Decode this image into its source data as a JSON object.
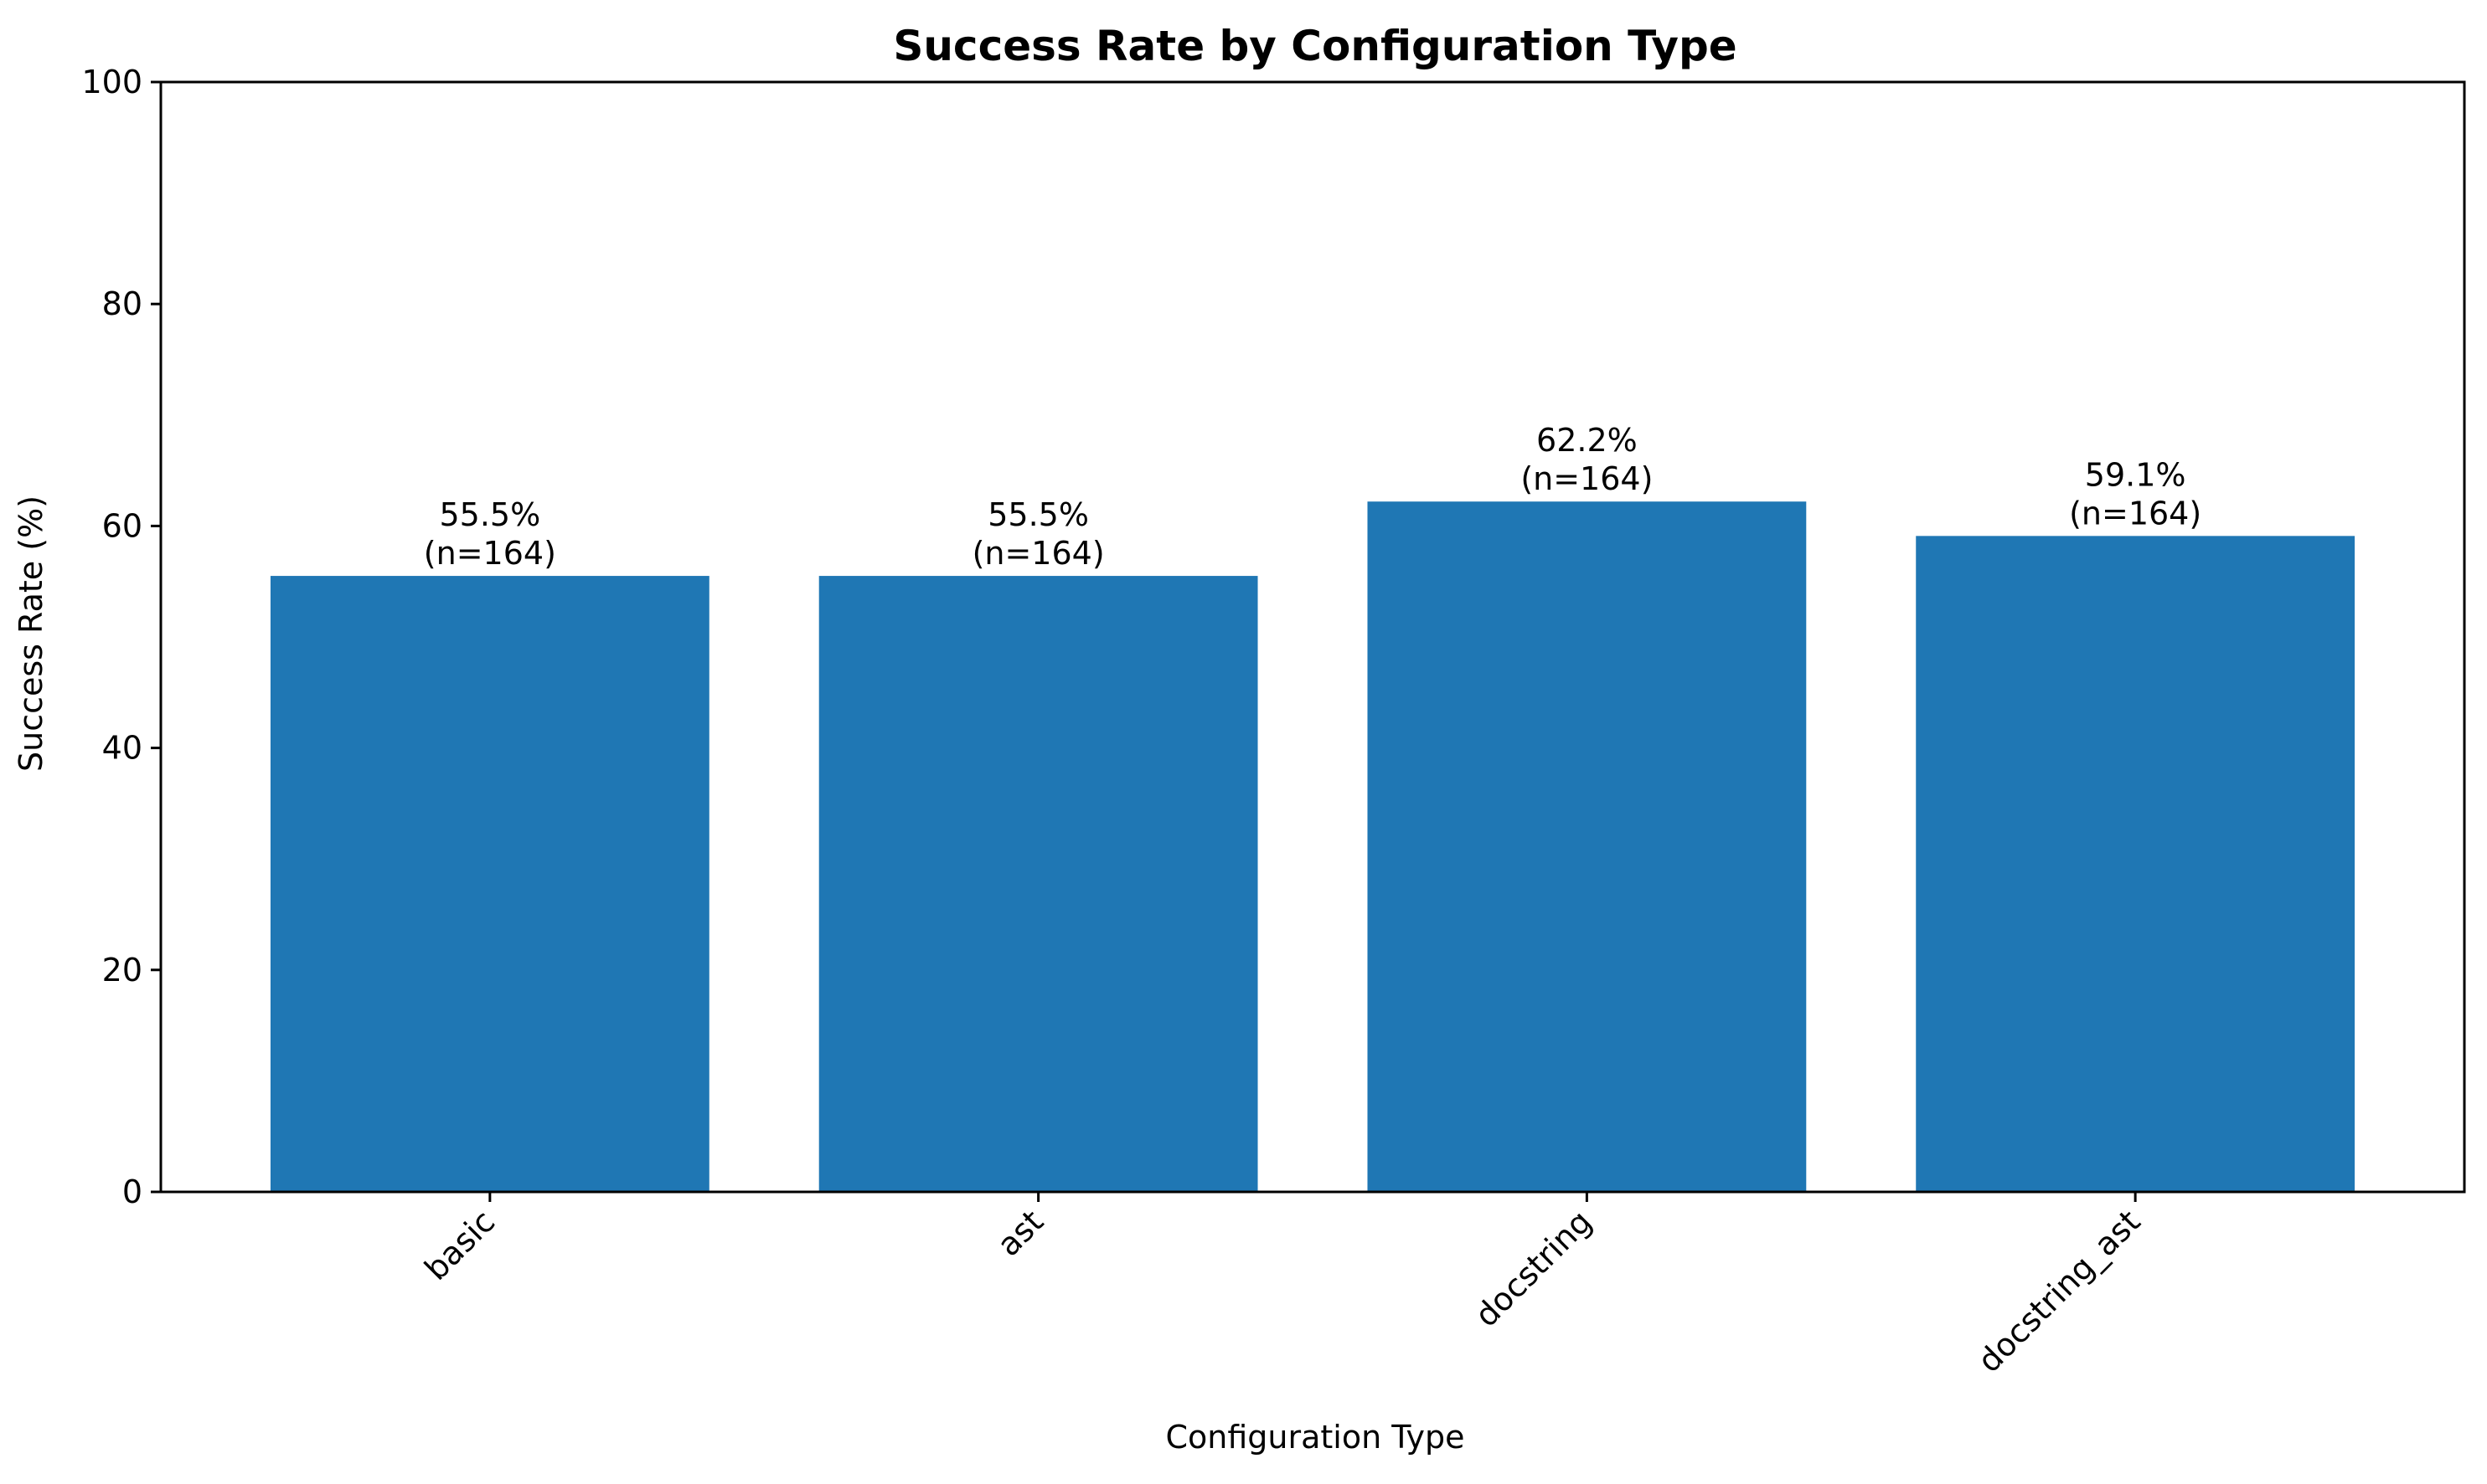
{
  "chart_data": {
    "type": "bar",
    "title": "Success Rate by Configuration Type",
    "xlabel": "Configuration Type",
    "ylabel": "Success Rate (%)",
    "categories": [
      "basic",
      "ast",
      "docstring",
      "docstring_ast"
    ],
    "values": [
      55.5,
      55.5,
      62.2,
      59.1
    ],
    "bar_labels": [
      [
        "55.5%",
        "(n=164)"
      ],
      [
        "55.5%",
        "(n=164)"
      ],
      [
        "62.2%",
        "(n=164)"
      ],
      [
        "59.1%",
        "(n=164)"
      ]
    ],
    "ylim": [
      0,
      100
    ],
    "yticks": [
      0,
      20,
      40,
      60,
      80,
      100
    ],
    "grid": false,
    "legend": "none",
    "xtick_rotation_deg": 45,
    "colors": {
      "bar": "#1f77b4",
      "axes": "#000000",
      "background": "#ffffff"
    }
  }
}
